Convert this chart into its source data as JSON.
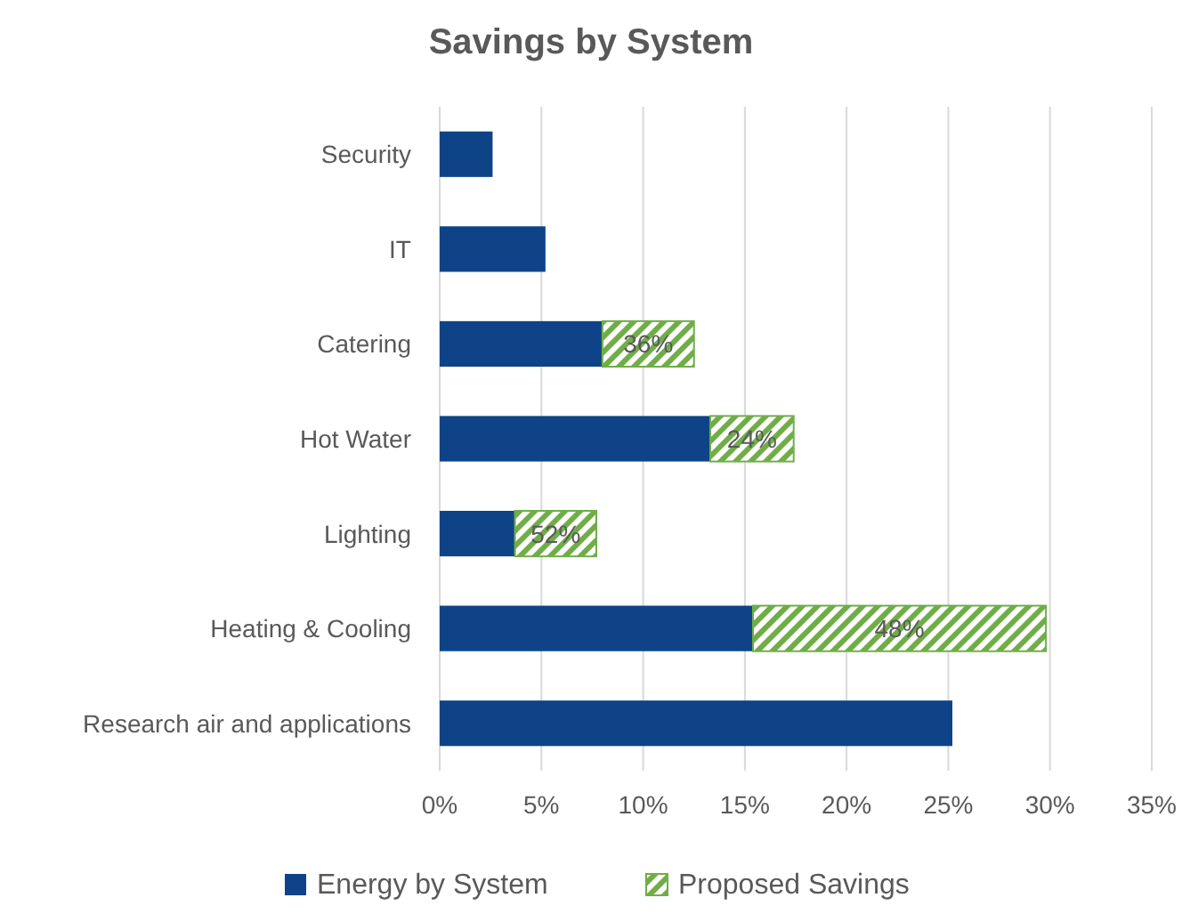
{
  "chart_data": {
    "type": "bar",
    "orientation": "horizontal",
    "stacked": true,
    "title": "Savings by System",
    "categories": [
      "Security",
      "IT",
      "Catering",
      "Hot Water",
      "Lighting",
      "Heating & Cooling",
      "Research air and applications"
    ],
    "series": [
      {
        "name": "Energy by System",
        "color": "#0e4487",
        "values": [
          2.6,
          5.2,
          8.0,
          13.3,
          3.7,
          15.4,
          25.2
        ]
      },
      {
        "name": "Proposed Savings",
        "color": "#70ad47",
        "values": [
          null,
          null,
          4.5,
          4.1,
          4.0,
          14.4,
          null
        ]
      }
    ],
    "annotations": [
      "36%",
      "24%",
      "52%",
      "48%"
    ],
    "xlim": [
      0,
      35
    ],
    "xticks": [
      {
        "value": 0,
        "label": "0%"
      },
      {
        "value": 5,
        "label": "5%"
      },
      {
        "value": 10,
        "label": "10%"
      },
      {
        "value": 15,
        "label": "15%"
      },
      {
        "value": 20,
        "label": "20%"
      },
      {
        "value": 25,
        "label": "25%"
      },
      {
        "value": 30,
        "label": "30%"
      },
      {
        "value": 35,
        "label": "35%"
      }
    ],
    "grid": "x",
    "legend": "bottom"
  }
}
